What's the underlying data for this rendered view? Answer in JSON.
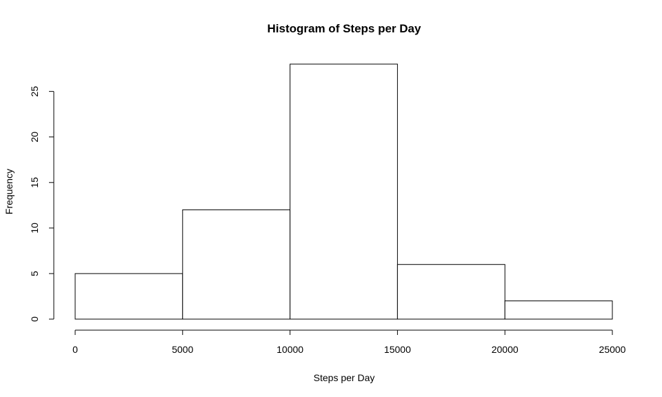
{
  "chart_data": {
    "type": "bar",
    "title": "Histogram of Steps per Day",
    "xlabel": "Steps per Day",
    "ylabel": "Frequency",
    "bins": [
      {
        "from": 0,
        "to": 5000,
        "count": 5
      },
      {
        "from": 5000,
        "to": 10000,
        "count": 12
      },
      {
        "from": 10000,
        "to": 15000,
        "count": 28
      },
      {
        "from": 15000,
        "to": 20000,
        "count": 6
      },
      {
        "from": 20000,
        "to": 25000,
        "count": 2
      }
    ],
    "xlim": [
      0,
      25000
    ],
    "ylim": [
      0,
      28
    ],
    "x_ticks": [
      0,
      5000,
      10000,
      15000,
      20000,
      25000
    ],
    "x_tick_labels": [
      "0",
      "5000",
      "10000",
      "15000",
      "20000",
      "25000"
    ],
    "y_ticks": [
      0,
      5,
      10,
      15,
      20,
      25
    ],
    "y_tick_labels": [
      "0",
      "5",
      "10",
      "15",
      "20",
      "25"
    ],
    "grid": false,
    "bar_fill": "#ffffff",
    "bar_stroke": "#000000"
  }
}
